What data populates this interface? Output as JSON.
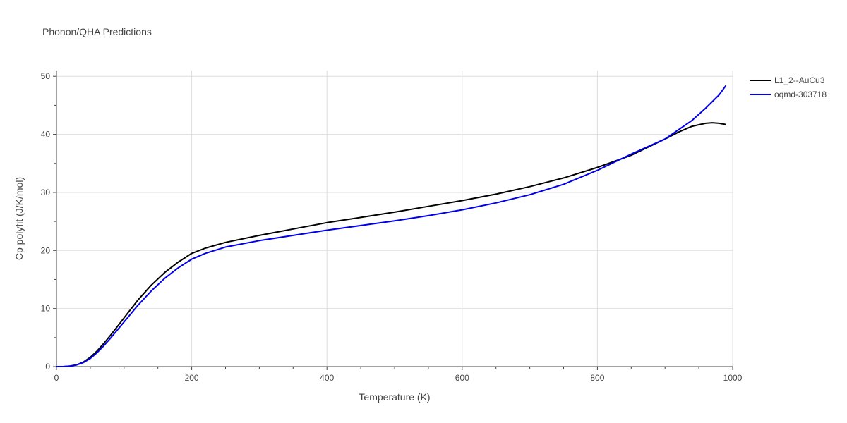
{
  "chart_data": {
    "type": "line",
    "title": "Phonon/QHA Predictions",
    "xlabel": "Temperature (K)",
    "ylabel": "Cp polyfit (J/K/mol)",
    "xlim": [
      0,
      1000
    ],
    "ylim": [
      0,
      51
    ],
    "xticks": [
      0,
      200,
      400,
      600,
      800,
      1000
    ],
    "yticks": [
      0,
      10,
      20,
      30,
      40,
      50
    ],
    "grid": true,
    "legend_position": "top-right",
    "series": [
      {
        "name": "L1_2--AuCu3",
        "color": "#000000",
        "x": [
          0,
          10,
          20,
          30,
          40,
          50,
          60,
          70,
          80,
          90,
          100,
          120,
          140,
          160,
          180,
          200,
          220,
          250,
          300,
          350,
          400,
          450,
          500,
          550,
          600,
          650,
          700,
          750,
          800,
          850,
          900,
          920,
          940,
          960,
          970,
          980,
          990
        ],
        "y": [
          0,
          0,
          0.1,
          0.3,
          0.8,
          1.6,
          2.7,
          4.0,
          5.4,
          6.9,
          8.4,
          11.4,
          14.0,
          16.2,
          18.0,
          19.5,
          20.4,
          21.4,
          22.6,
          23.7,
          24.8,
          25.7,
          26.6,
          27.6,
          28.6,
          29.7,
          31.0,
          32.5,
          34.3,
          36.4,
          39.2,
          40.4,
          41.4,
          41.9,
          42.0,
          41.9,
          41.7
        ]
      },
      {
        "name": "oqmd-303718",
        "color": "#0000ee",
        "x": [
          0,
          10,
          20,
          30,
          40,
          50,
          60,
          70,
          80,
          90,
          100,
          120,
          140,
          160,
          180,
          200,
          220,
          250,
          300,
          350,
          400,
          450,
          500,
          550,
          600,
          650,
          700,
          750,
          800,
          850,
          900,
          920,
          940,
          960,
          980,
          990
        ],
        "y": [
          0,
          0,
          0.1,
          0.3,
          0.7,
          1.4,
          2.4,
          3.6,
          4.9,
          6.3,
          7.7,
          10.5,
          13.0,
          15.2,
          17.0,
          18.5,
          19.5,
          20.6,
          21.7,
          22.6,
          23.5,
          24.3,
          25.1,
          26.0,
          27.0,
          28.2,
          29.6,
          31.4,
          33.8,
          36.6,
          39.2,
          40.8,
          42.4,
          44.5,
          46.8,
          48.4
        ]
      }
    ]
  }
}
